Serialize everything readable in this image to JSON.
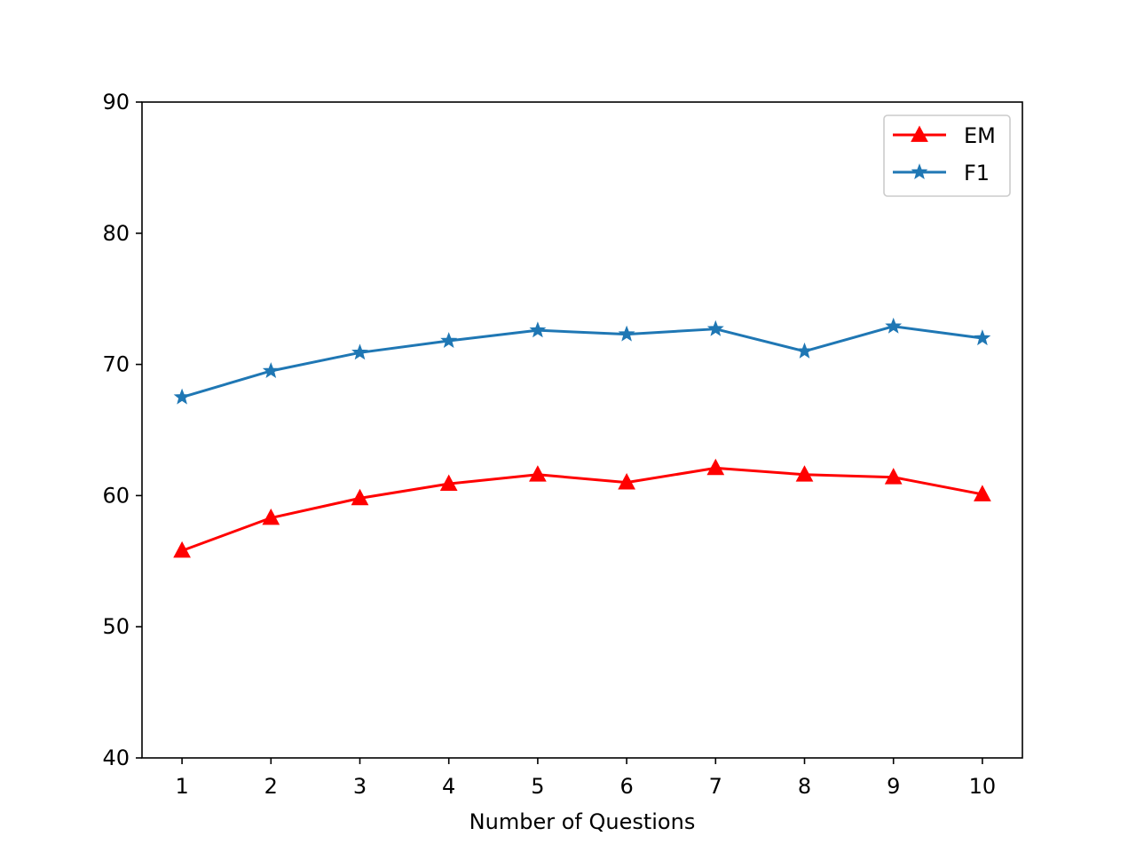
{
  "chart_data": {
    "type": "line",
    "title": "",
    "xlabel": "Number of Questions",
    "ylabel": "",
    "x": [
      1,
      2,
      3,
      4,
      5,
      6,
      7,
      8,
      9,
      10
    ],
    "xticks": [
      "1",
      "2",
      "3",
      "4",
      "5",
      "6",
      "7",
      "8",
      "9",
      "10"
    ],
    "yticks": [
      "40",
      "50",
      "60",
      "70",
      "80",
      "90"
    ],
    "xlim": [
      0.55,
      10.45
    ],
    "ylim": [
      40,
      90
    ],
    "grid": false,
    "legend_position": "top-right",
    "series": [
      {
        "name": "EM",
        "color": "#ff0000",
        "marker": "triangle",
        "values": [
          55.8,
          58.3,
          59.8,
          60.9,
          61.6,
          61.0,
          62.1,
          61.6,
          61.4,
          60.1
        ]
      },
      {
        "name": "F1",
        "color": "#1f77b4",
        "marker": "star",
        "values": [
          67.5,
          69.5,
          70.9,
          71.8,
          72.6,
          72.3,
          72.7,
          71.0,
          72.9,
          72.0
        ]
      }
    ]
  }
}
